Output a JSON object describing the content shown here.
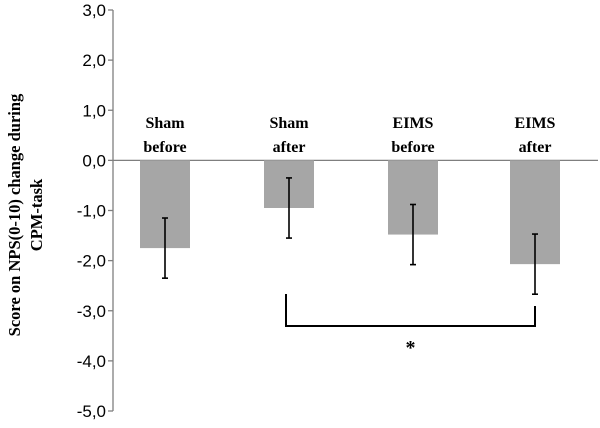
{
  "chart_data": {
    "type": "bar",
    "categories": [
      [
        "Sham",
        "before"
      ],
      [
        "Sham",
        "after"
      ],
      [
        "EIMS",
        "before"
      ],
      [
        "EIMS",
        "after"
      ]
    ],
    "values": [
      -1.75,
      -0.95,
      -1.48,
      -2.07
    ],
    "errors": [
      0.6,
      0.6,
      0.6,
      0.6
    ],
    "ylim": [
      -5.0,
      3.0
    ],
    "yticks": [
      "3,0",
      "2,0",
      "1,0",
      "0,0",
      "-1,0",
      "-2,0",
      "-3,0",
      "-4,0",
      "-5,0"
    ],
    "ylabel_lines": [
      "Score on NPS(0-10) change during",
      "CPM-task"
    ],
    "xlabel": "",
    "significance": {
      "from": 1,
      "to": 3,
      "label": "*"
    },
    "colors": {
      "bar": "#a6a6a6",
      "axis": "#7f7f7f",
      "error": "#000000",
      "text": "#000000"
    }
  }
}
